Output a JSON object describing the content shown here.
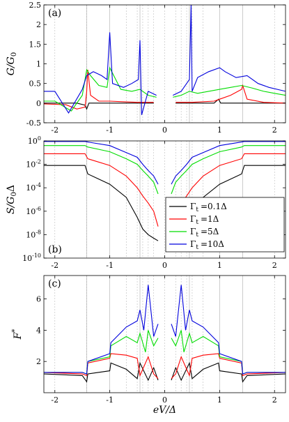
{
  "chart_data": [
    {
      "type": "line",
      "panel_label": "(a)",
      "ylabel": "G/G0",
      "ylabel_main": "G/G",
      "ylabel_sub": "0",
      "xlim": [
        -2.2,
        2.2
      ],
      "ylim": [
        -0.5,
        2.5
      ],
      "yscale": "linear",
      "xticks": [
        -2,
        -1,
        0,
        1,
        2
      ],
      "yticks": [
        -0.5,
        0,
        0.5,
        1,
        1.5,
        2,
        2.5
      ],
      "ytick_labels": [
        "-0.5",
        "0",
        "0.5",
        "1",
        "1.5",
        "2",
        "2.5"
      ],
      "series": [
        {
          "color": "#000000",
          "x": [
            -2.2,
            -1.9,
            -1.6,
            -1.45,
            -1.42,
            -1.38,
            -1.2,
            -1.0,
            -0.5,
            -0.2,
            0.2,
            0.5,
            0.9,
            0.98,
            1.02,
            1.1,
            2.2
          ],
          "y": [
            0,
            0,
            0,
            -0.05,
            -0.15,
            0,
            0,
            0,
            0,
            0,
            0,
            0,
            0,
            0.1,
            0,
            0,
            0
          ]
        },
        {
          "color": "#ff0000",
          "x": [
            -2.2,
            -1.8,
            -1.6,
            -1.45,
            -1.42,
            -1.4,
            -1.35,
            -1.2,
            -1.0,
            -0.7,
            -0.5,
            -0.2,
            0.2,
            0.5,
            0.9,
            1.0,
            1.2,
            1.4,
            1.42,
            1.5,
            1.8,
            2.2
          ],
          "y": [
            -0.02,
            -0.04,
            -0.15,
            -0.1,
            0.3,
            0.85,
            0.2,
            0.05,
            0.05,
            0.03,
            0.02,
            0.02,
            0.02,
            0.02,
            0.05,
            0.1,
            0.2,
            0.35,
            0.45,
            0.1,
            0.02,
            0.0
          ]
        },
        {
          "color": "#00dd00",
          "x": [
            -2.2,
            -2.0,
            -1.7,
            -1.5,
            -1.42,
            -1.35,
            -1.2,
            -1.05,
            -1.0,
            -0.8,
            -0.6,
            -0.45,
            -0.3,
            -0.15,
            0.15,
            0.3,
            0.45,
            0.6,
            0.8,
            1.0,
            1.2,
            1.4,
            1.6,
            1.8,
            2.0,
            2.2
          ],
          "y": [
            0.05,
            0.05,
            -0.2,
            0.2,
            0.85,
            0.7,
            0.45,
            0.4,
            0.9,
            0.35,
            0.3,
            0.35,
            0.2,
            0.15,
            0.15,
            0.2,
            0.3,
            0.25,
            0.3,
            0.35,
            0.4,
            0.45,
            0.38,
            0.3,
            0.25,
            0.2
          ]
        },
        {
          "color": "#0000dd",
          "x": [
            -2.2,
            -2.0,
            -1.75,
            -1.5,
            -1.42,
            -1.3,
            -1.15,
            -1.05,
            -1.0,
            -0.95,
            -0.75,
            -0.6,
            -0.48,
            -0.45,
            -0.42,
            -0.3,
            -0.15,
            0.15,
            0.3,
            0.45,
            0.48,
            0.5,
            0.6,
            0.8,
            1.0,
            1.1,
            1.3,
            1.5,
            1.7,
            1.9,
            2.2
          ],
          "y": [
            0.3,
            0.3,
            -0.25,
            0.35,
            0.7,
            0.8,
            0.7,
            0.6,
            1.8,
            0.5,
            0.4,
            0.5,
            0.6,
            1.6,
            -0.3,
            0.3,
            0.2,
            0.2,
            0.3,
            0.6,
            2.5,
            0.3,
            0.65,
            0.8,
            0.9,
            0.8,
            0.65,
            0.7,
            0.5,
            0.4,
            0.3
          ]
        }
      ]
    },
    {
      "type": "line",
      "panel_label": "(b)",
      "ylabel": "S/G0Δ",
      "ylabel_main": "S/G",
      "ylabel_sub": "0",
      "ylabel_end": "Δ",
      "xlim": [
        -2.2,
        2.2
      ],
      "ylim": [
        1e-10,
        1
      ],
      "yscale": "log",
      "xticks": [
        -2,
        -1,
        0,
        1,
        2
      ],
      "yticks_exp": [
        -10,
        -8,
        -6,
        -4,
        -2,
        0
      ],
      "ytick_base": "10",
      "legend": {
        "position": "lower-right",
        "entries_prefix": "Γ",
        "entries_sub": "t",
        "entries": [
          "=0.1Δ",
          "=1Δ",
          "=5Δ",
          "=10Δ"
        ]
      },
      "series": [
        {
          "color": "#000000",
          "label": "=0.1Δ",
          "x": [
            -2.2,
            -1.45,
            -1.4,
            -1.0,
            -0.7,
            -0.5,
            -0.4,
            -0.3,
            -0.2,
            -0.12,
            0.12,
            0.2,
            0.3,
            0.4,
            0.5,
            0.7,
            1.0,
            1.4,
            1.45,
            2.2
          ],
          "y": [
            0.008,
            0.008,
            0.0015,
            0.0002,
            1.5e-05,
            3e-07,
            3e-08,
            1e-08,
            5e-09,
            3e-09,
            3e-09,
            5e-09,
            1e-08,
            3e-08,
            3e-07,
            1.5e-05,
            0.0002,
            0.0015,
            0.008,
            0.008
          ]
        },
        {
          "color": "#ff0000",
          "label": "=1Δ",
          "x": [
            -2.2,
            -1.45,
            -1.4,
            -1.0,
            -0.7,
            -0.5,
            -0.4,
            -0.3,
            -0.2,
            -0.12,
            0.12,
            0.2,
            0.3,
            0.4,
            0.5,
            0.7,
            1.0,
            1.4,
            1.45,
            2.2
          ],
          "y": [
            0.08,
            0.08,
            0.03,
            0.008,
            0.001,
            0.0001,
            2e-05,
            5e-06,
            1e-06,
            5e-08,
            5e-08,
            1e-06,
            5e-06,
            2e-05,
            0.0001,
            0.001,
            0.008,
            0.03,
            0.08,
            0.08
          ]
        },
        {
          "color": "#00dd00",
          "label": "=5Δ",
          "x": [
            -2.2,
            -1.45,
            -1.4,
            -1.0,
            -0.7,
            -0.5,
            -0.4,
            -0.3,
            -0.2,
            -0.12,
            0.12,
            0.2,
            0.3,
            0.4,
            0.5,
            0.7,
            1.0,
            1.4,
            1.45,
            2.2
          ],
          "y": [
            0.4,
            0.4,
            0.3,
            0.12,
            0.03,
            0.01,
            0.003,
            0.001,
            0.0003,
            3e-05,
            3e-05,
            0.0003,
            0.001,
            0.003,
            0.01,
            0.03,
            0.12,
            0.3,
            0.4,
            0.4
          ]
        },
        {
          "color": "#0000dd",
          "label": "=10Δ",
          "x": [
            -2.2,
            -1.45,
            -1.4,
            -1.0,
            -0.7,
            -0.5,
            -0.4,
            -0.3,
            -0.2,
            -0.12,
            0.12,
            0.2,
            0.3,
            0.4,
            0.5,
            0.7,
            1.0,
            1.4,
            1.45,
            2.2
          ],
          "y": [
            0.9,
            0.9,
            0.8,
            0.4,
            0.1,
            0.04,
            0.01,
            0.003,
            0.001,
            0.0002,
            0.0002,
            0.001,
            0.003,
            0.01,
            0.04,
            0.1,
            0.4,
            0.8,
            0.9,
            0.9
          ]
        }
      ]
    },
    {
      "type": "line",
      "panel_label": "(c)",
      "ylabel": "F*",
      "ylabel_main": "F",
      "ylabel_sup": "*",
      "xlabel": "eV/Δ",
      "xlim": [
        -2.2,
        2.2
      ],
      "ylim": [
        0,
        7.5
      ],
      "yscale": "linear",
      "xticks": [
        -2,
        -1,
        0,
        1,
        2
      ],
      "yticks": [
        2,
        4,
        6
      ],
      "ytick_labels": [
        "2",
        "4",
        "6"
      ],
      "series": [
        {
          "color": "#000000",
          "x": [
            -2.2,
            -1.5,
            -1.42,
            -1.4,
            -1.0,
            -0.98,
            -0.7,
            -0.5,
            -0.45,
            -0.3,
            -0.2,
            -0.12,
            0.12,
            0.2,
            0.3,
            0.45,
            0.5,
            0.7,
            0.98,
            1.0,
            1.4,
            1.42,
            1.5,
            2.2
          ],
          "y": [
            1.2,
            1.1,
            0.7,
            1.2,
            1.4,
            1.9,
            1.5,
            0.9,
            1.9,
            0.8,
            1.6,
            0.8,
            0.8,
            1.6,
            0.8,
            1.9,
            0.9,
            1.5,
            1.9,
            1.4,
            1.2,
            0.7,
            1.1,
            1.2
          ]
        },
        {
          "color": "#ff0000",
          "x": [
            -2.2,
            -1.5,
            -1.42,
            -1.4,
            -1.0,
            -0.98,
            -0.7,
            -0.5,
            -0.45,
            -0.3,
            -0.2,
            -0.12,
            0.12,
            0.2,
            0.3,
            0.45,
            0.5,
            0.7,
            0.98,
            1.0,
            1.4,
            1.42,
            1.5,
            2.2
          ],
          "y": [
            1.3,
            1.2,
            1.1,
            1.9,
            2.2,
            2.5,
            2.4,
            2.2,
            1.1,
            2.3,
            1.2,
            0.9,
            0.9,
            1.2,
            2.3,
            1.1,
            2.2,
            2.4,
            2.5,
            2.2,
            1.9,
            1.1,
            1.2,
            1.3
          ]
        },
        {
          "color": "#00dd00",
          "x": [
            -2.2,
            -1.5,
            -1.42,
            -1.4,
            -1.0,
            -0.98,
            -0.7,
            -0.5,
            -0.45,
            -0.35,
            -0.3,
            -0.2,
            -0.12,
            0.12,
            0.2,
            0.3,
            0.35,
            0.45,
            0.5,
            0.7,
            0.98,
            1.0,
            1.4,
            1.42,
            1.5,
            2.2
          ],
          "y": [
            1.3,
            1.3,
            1.2,
            2.0,
            2.3,
            3.0,
            3.6,
            3.2,
            3.8,
            2.6,
            4.0,
            3.0,
            3.5,
            3.5,
            3.0,
            4.0,
            2.6,
            3.8,
            3.2,
            3.6,
            3.0,
            2.3,
            2.0,
            1.2,
            1.3,
            1.3
          ]
        },
        {
          "color": "#0000dd",
          "x": [
            -2.2,
            -1.5,
            -1.42,
            -1.4,
            -1.0,
            -0.98,
            -0.7,
            -0.5,
            -0.45,
            -0.38,
            -0.3,
            -0.2,
            -0.12,
            0.12,
            0.2,
            0.3,
            0.38,
            0.45,
            0.5,
            0.7,
            0.98,
            1.0,
            1.4,
            1.42,
            1.5,
            2.2
          ],
          "y": [
            1.3,
            1.3,
            1.2,
            2.0,
            2.5,
            3.2,
            4.2,
            4.6,
            5.3,
            4.0,
            6.9,
            3.6,
            4.4,
            4.4,
            3.6,
            6.9,
            4.0,
            5.3,
            4.6,
            4.2,
            3.2,
            2.5,
            2.0,
            1.2,
            1.3,
            1.3
          ]
        }
      ]
    }
  ],
  "tick_labels_x": [
    "-2",
    "-1",
    "0",
    "1",
    "2"
  ]
}
